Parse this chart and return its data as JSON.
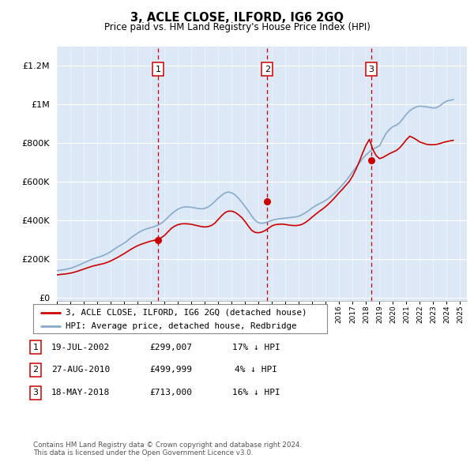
{
  "title": "3, ACLE CLOSE, ILFORD, IG6 2GQ",
  "subtitle": "Price paid vs. HM Land Registry's House Price Index (HPI)",
  "legend_line1": "3, ACLE CLOSE, ILFORD, IG6 2GQ (detached house)",
  "legend_line2": "HPI: Average price, detached house, Redbridge",
  "footer1": "Contains HM Land Registry data © Crown copyright and database right 2024.",
  "footer2": "This data is licensed under the Open Government Licence v3.0.",
  "transactions": [
    {
      "num": 1,
      "date": "19-JUL-2002",
      "price": "£299,007",
      "pct": "17% ↓ HPI",
      "year": 2002.54,
      "dot_price": 299007
    },
    {
      "num": 2,
      "date": "27-AUG-2010",
      "price": "£499,999",
      "pct": "4% ↓ HPI",
      "year": 2010.65,
      "dot_price": 499999
    },
    {
      "num": 3,
      "date": "18-MAY-2018",
      "price": "£713,000",
      "pct": "16% ↓ HPI",
      "year": 2018.38,
      "dot_price": 713000
    }
  ],
  "price_color": "#cc0000",
  "hpi_color": "#88aacc",
  "chart_bg": "#dce8f5",
  "fig_bg": "#ffffff",
  "vline_color": "#cc0000",
  "hpi_x": [
    1995.0,
    1995.25,
    1995.5,
    1995.75,
    1996.0,
    1996.25,
    1996.5,
    1996.75,
    1997.0,
    1997.25,
    1997.5,
    1997.75,
    1998.0,
    1998.25,
    1998.5,
    1998.75,
    1999.0,
    1999.25,
    1999.5,
    1999.75,
    2000.0,
    2000.25,
    2000.5,
    2000.75,
    2001.0,
    2001.25,
    2001.5,
    2001.75,
    2002.0,
    2002.25,
    2002.5,
    2002.75,
    2003.0,
    2003.25,
    2003.5,
    2003.75,
    2004.0,
    2004.25,
    2004.5,
    2004.75,
    2005.0,
    2005.25,
    2005.5,
    2005.75,
    2006.0,
    2006.25,
    2006.5,
    2006.75,
    2007.0,
    2007.25,
    2007.5,
    2007.75,
    2008.0,
    2008.25,
    2008.5,
    2008.75,
    2009.0,
    2009.25,
    2009.5,
    2009.75,
    2010.0,
    2010.25,
    2010.5,
    2010.75,
    2011.0,
    2011.25,
    2011.5,
    2011.75,
    2012.0,
    2012.25,
    2012.5,
    2012.75,
    2013.0,
    2013.25,
    2013.5,
    2013.75,
    2014.0,
    2014.25,
    2014.5,
    2014.75,
    2015.0,
    2015.25,
    2015.5,
    2015.75,
    2016.0,
    2016.25,
    2016.5,
    2016.75,
    2017.0,
    2017.25,
    2017.5,
    2017.75,
    2018.0,
    2018.25,
    2018.5,
    2018.75,
    2019.0,
    2019.25,
    2019.5,
    2019.75,
    2020.0,
    2020.25,
    2020.5,
    2020.75,
    2021.0,
    2021.25,
    2021.5,
    2021.75,
    2022.0,
    2022.25,
    2022.5,
    2022.75,
    2023.0,
    2023.25,
    2023.5,
    2023.75,
    2024.0,
    2024.25,
    2024.5
  ],
  "hpi_y": [
    140000,
    142000,
    145000,
    148000,
    152000,
    158000,
    165000,
    172000,
    180000,
    188000,
    196000,
    202000,
    208000,
    213000,
    220000,
    228000,
    238000,
    250000,
    262000,
    272000,
    282000,
    295000,
    310000,
    322000,
    334000,
    344000,
    352000,
    358000,
    363000,
    368000,
    375000,
    385000,
    398000,
    415000,
    432000,
    446000,
    458000,
    466000,
    470000,
    470000,
    468000,
    465000,
    462000,
    460000,
    462000,
    470000,
    482000,
    498000,
    515000,
    530000,
    542000,
    547000,
    543000,
    533000,
    515000,
    495000,
    472000,
    448000,
    422000,
    400000,
    388000,
    385000,
    388000,
    394000,
    400000,
    405000,
    408000,
    410000,
    412000,
    414000,
    416000,
    418000,
    422000,
    430000,
    440000,
    452000,
    465000,
    476000,
    486000,
    494000,
    504000,
    516000,
    532000,
    548000,
    566000,
    584000,
    605000,
    628000,
    652000,
    675000,
    698000,
    720000,
    740000,
    755000,
    768000,
    778000,
    786000,
    820000,
    852000,
    872000,
    886000,
    893000,
    906000,
    928000,
    950000,
    968000,
    980000,
    988000,
    992000,
    990000,
    988000,
    985000,
    982000,
    984000,
    994000,
    1008000,
    1018000,
    1022000,
    1026000
  ],
  "price_x": [
    1995.0,
    1995.25,
    1995.5,
    1995.75,
    1996.0,
    1996.25,
    1996.5,
    1996.75,
    1997.0,
    1997.25,
    1997.5,
    1997.75,
    1998.0,
    1998.25,
    1998.5,
    1998.75,
    1999.0,
    1999.25,
    1999.5,
    1999.75,
    2000.0,
    2000.25,
    2000.5,
    2000.75,
    2001.0,
    2001.25,
    2001.5,
    2001.75,
    2002.0,
    2002.25,
    2002.5,
    2002.75,
    2003.0,
    2003.25,
    2003.5,
    2003.75,
    2004.0,
    2004.25,
    2004.5,
    2004.75,
    2005.0,
    2005.25,
    2005.5,
    2005.75,
    2006.0,
    2006.25,
    2006.5,
    2006.75,
    2007.0,
    2007.25,
    2007.5,
    2007.75,
    2008.0,
    2008.25,
    2008.5,
    2008.75,
    2009.0,
    2009.25,
    2009.5,
    2009.75,
    2010.0,
    2010.25,
    2010.5,
    2010.75,
    2011.0,
    2011.25,
    2011.5,
    2011.75,
    2012.0,
    2012.25,
    2012.5,
    2012.75,
    2013.0,
    2013.25,
    2013.5,
    2013.75,
    2014.0,
    2014.25,
    2014.5,
    2014.75,
    2015.0,
    2015.25,
    2015.5,
    2015.75,
    2016.0,
    2016.25,
    2016.5,
    2016.75,
    2017.0,
    2017.25,
    2017.5,
    2017.75,
    2018.0,
    2018.25,
    2018.5,
    2018.75,
    2019.0,
    2019.25,
    2019.5,
    2019.75,
    2020.0,
    2020.25,
    2020.5,
    2020.75,
    2021.0,
    2021.25,
    2021.5,
    2021.75,
    2022.0,
    2022.25,
    2022.5,
    2022.75,
    2023.0,
    2023.25,
    2023.5,
    2023.75,
    2024.0,
    2024.25,
    2024.5
  ],
  "price_y": [
    118000,
    120000,
    122000,
    124000,
    127000,
    131000,
    136000,
    142000,
    148000,
    154000,
    160000,
    165000,
    169000,
    173000,
    177000,
    183000,
    190000,
    199000,
    208000,
    218000,
    228000,
    239000,
    250000,
    260000,
    269000,
    276000,
    282000,
    288000,
    293000,
    297000,
    302000,
    310000,
    322000,
    340000,
    358000,
    370000,
    378000,
    382000,
    383000,
    382000,
    380000,
    376000,
    372000,
    368000,
    366000,
    368000,
    374000,
    386000,
    405000,
    424000,
    440000,
    448000,
    448000,
    442000,
    430000,
    415000,
    394000,
    370000,
    348000,
    338000,
    336000,
    340000,
    348000,
    360000,
    372000,
    378000,
    380000,
    381000,
    379000,
    376000,
    374000,
    373000,
    375000,
    380000,
    390000,
    403000,
    418000,
    432000,
    446000,
    458000,
    472000,
    488000,
    505000,
    524000,
    544000,
    562000,
    582000,
    602000,
    630000,
    665000,
    705000,
    750000,
    790000,
    820000,
    768000,
    736000,
    720000,
    726000,
    736000,
    746000,
    754000,
    762000,
    776000,
    796000,
    818000,
    836000,
    828000,
    818000,
    806000,
    800000,
    794000,
    792000,
    792000,
    794000,
    798000,
    804000,
    808000,
    812000,
    815000
  ]
}
